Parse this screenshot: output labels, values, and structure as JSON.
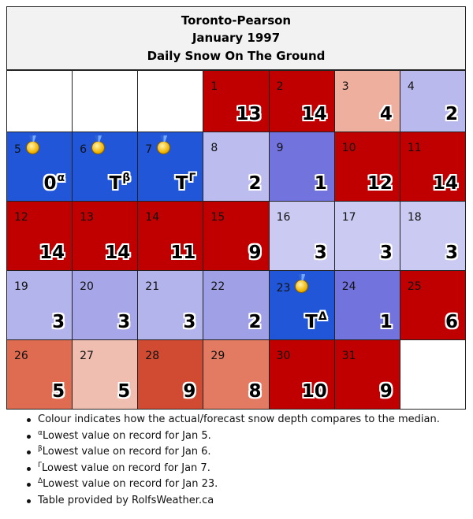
{
  "header": {
    "line1": "Toronto-Pearson",
    "line2": "January 1997",
    "line3": "Daily Snow On The Ground"
  },
  "weeks": [
    [
      {
        "day": null,
        "color": "#ffffff"
      },
      {
        "day": null,
        "color": "#ffffff"
      },
      {
        "day": null,
        "color": "#ffffff"
      },
      {
        "day": "1",
        "value": "13",
        "sup": "",
        "medal": false,
        "color": "#c00000"
      },
      {
        "day": "2",
        "value": "14",
        "sup": "",
        "medal": false,
        "color": "#c00000"
      },
      {
        "day": "3",
        "value": "4",
        "sup": "",
        "medal": false,
        "color": "#efaf9e"
      },
      {
        "day": "4",
        "value": "2",
        "sup": "",
        "medal": false,
        "color": "#b9b9ee"
      }
    ],
    [
      {
        "day": "5",
        "value": "0",
        "sup": "α",
        "medal": true,
        "color": "#2156d9"
      },
      {
        "day": "6",
        "value": "T",
        "sup": "β",
        "medal": true,
        "color": "#2156d9"
      },
      {
        "day": "7",
        "value": "T",
        "sup": "Γ",
        "medal": true,
        "color": "#2156d9"
      },
      {
        "day": "8",
        "value": "2",
        "sup": "",
        "medal": false,
        "color": "#bcbcee"
      },
      {
        "day": "9",
        "value": "1",
        "sup": "",
        "medal": false,
        "color": "#7373de"
      },
      {
        "day": "10",
        "value": "12",
        "sup": "",
        "medal": false,
        "color": "#c00000"
      },
      {
        "day": "11",
        "value": "14",
        "sup": "",
        "medal": false,
        "color": "#c00000"
      }
    ],
    [
      {
        "day": "12",
        "value": "14",
        "sup": "",
        "medal": false,
        "color": "#c00000"
      },
      {
        "day": "13",
        "value": "14",
        "sup": "",
        "medal": false,
        "color": "#c00000"
      },
      {
        "day": "14",
        "value": "11",
        "sup": "",
        "medal": false,
        "color": "#c00000"
      },
      {
        "day": "15",
        "value": "9",
        "sup": "",
        "medal": false,
        "color": "#c00000"
      },
      {
        "day": "16",
        "value": "3",
        "sup": "",
        "medal": false,
        "color": "#cacaf2"
      },
      {
        "day": "17",
        "value": "3",
        "sup": "",
        "medal": false,
        "color": "#cacaf2"
      },
      {
        "day": "18",
        "value": "3",
        "sup": "",
        "medal": false,
        "color": "#cacaf2"
      }
    ],
    [
      {
        "day": "19",
        "value": "3",
        "sup": "",
        "medal": false,
        "color": "#b4b4ec"
      },
      {
        "day": "20",
        "value": "3",
        "sup": "",
        "medal": false,
        "color": "#a6a6e8"
      },
      {
        "day": "21",
        "value": "3",
        "sup": "",
        "medal": false,
        "color": "#b4b4ec"
      },
      {
        "day": "22",
        "value": "2",
        "sup": "",
        "medal": false,
        "color": "#a0a0e6"
      },
      {
        "day": "23",
        "value": "T",
        "sup": "Δ",
        "medal": true,
        "color": "#2156d9"
      },
      {
        "day": "24",
        "value": "1",
        "sup": "",
        "medal": false,
        "color": "#7373de"
      },
      {
        "day": "25",
        "value": "6",
        "sup": "",
        "medal": false,
        "color": "#c00000"
      }
    ],
    [
      {
        "day": "26",
        "value": "5",
        "sup": "",
        "medal": false,
        "color": "#df6b50"
      },
      {
        "day": "27",
        "value": "5",
        "sup": "",
        "medal": false,
        "color": "#f0beb0"
      },
      {
        "day": "28",
        "value": "9",
        "sup": "",
        "medal": false,
        "color": "#d04b32"
      },
      {
        "day": "29",
        "value": "8",
        "sup": "",
        "medal": false,
        "color": "#e37b62"
      },
      {
        "day": "30",
        "value": "10",
        "sup": "",
        "medal": false,
        "color": "#c00000"
      },
      {
        "day": "31",
        "value": "9",
        "sup": "",
        "medal": false,
        "color": "#c00000"
      },
      {
        "day": null,
        "color": "#ffffff"
      }
    ]
  ],
  "notes": [
    {
      "sup": "",
      "text": "Colour indicates how the actual/forecast snow depth compares to the median."
    },
    {
      "sup": "α",
      "text": "Lowest value on record for Jan 5."
    },
    {
      "sup": "β",
      "text": "Lowest value on record for Jan 6."
    },
    {
      "sup": "Γ",
      "text": "Lowest value on record for Jan 7."
    },
    {
      "sup": "Δ",
      "text": "Lowest value on record for Jan 23."
    },
    {
      "sup": "",
      "text": "Table provided by RolfsWeather.ca"
    }
  ],
  "icons": {
    "record": "medal-icon"
  }
}
